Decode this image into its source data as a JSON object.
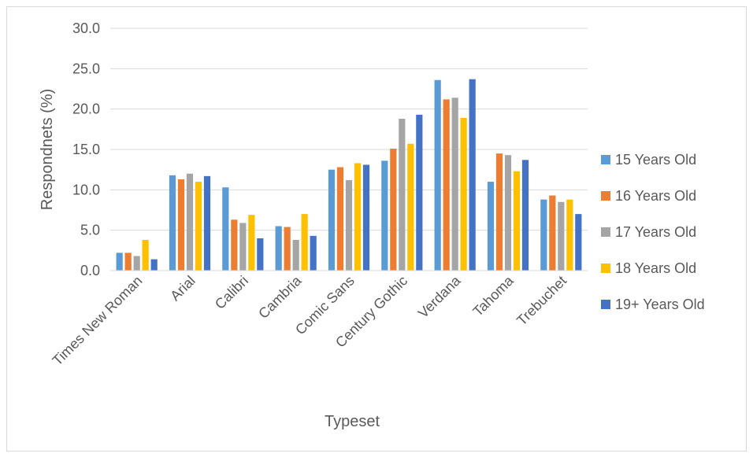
{
  "chart_data": {
    "type": "bar",
    "title": "",
    "xlabel": "Typeset",
    "ylabel": "Respondnets (%)",
    "ylim": [
      0,
      30
    ],
    "ytick_labels": [
      "0.0",
      "5.0",
      "10.0",
      "15.0",
      "20.0",
      "25.0",
      "30.0"
    ],
    "grid": true,
    "legend_position": "right",
    "categories": [
      "Times New Roman",
      "Arial",
      "Calibri",
      "Cambria",
      "Comic Sans",
      "Century Gothic",
      "Verdana",
      "Tahoma",
      "Trebuchet"
    ],
    "series": [
      {
        "name": "15 Years Old",
        "color": "#5B9BD5",
        "values": [
          2.2,
          11.8,
          10.3,
          5.5,
          12.5,
          13.6,
          23.6,
          11.0,
          8.8
        ]
      },
      {
        "name": "16 Years Old",
        "color": "#ED7D31",
        "values": [
          2.2,
          11.3,
          6.3,
          5.4,
          12.8,
          15.1,
          21.2,
          14.5,
          9.3
        ]
      },
      {
        "name": "17 Years Old",
        "color": "#A5A5A5",
        "values": [
          1.8,
          12.0,
          5.9,
          3.8,
          11.2,
          18.8,
          21.4,
          14.3,
          8.5
        ]
      },
      {
        "name": "18 Years Old",
        "color": "#FFC000",
        "values": [
          3.8,
          11.0,
          6.9,
          7.0,
          13.3,
          15.7,
          18.9,
          12.3,
          8.8
        ]
      },
      {
        "name": "19+ Years Old",
        "color": "#4472C4",
        "values": [
          1.4,
          11.7,
          4.0,
          4.3,
          13.1,
          19.3,
          23.7,
          13.7,
          7.0
        ]
      }
    ]
  }
}
